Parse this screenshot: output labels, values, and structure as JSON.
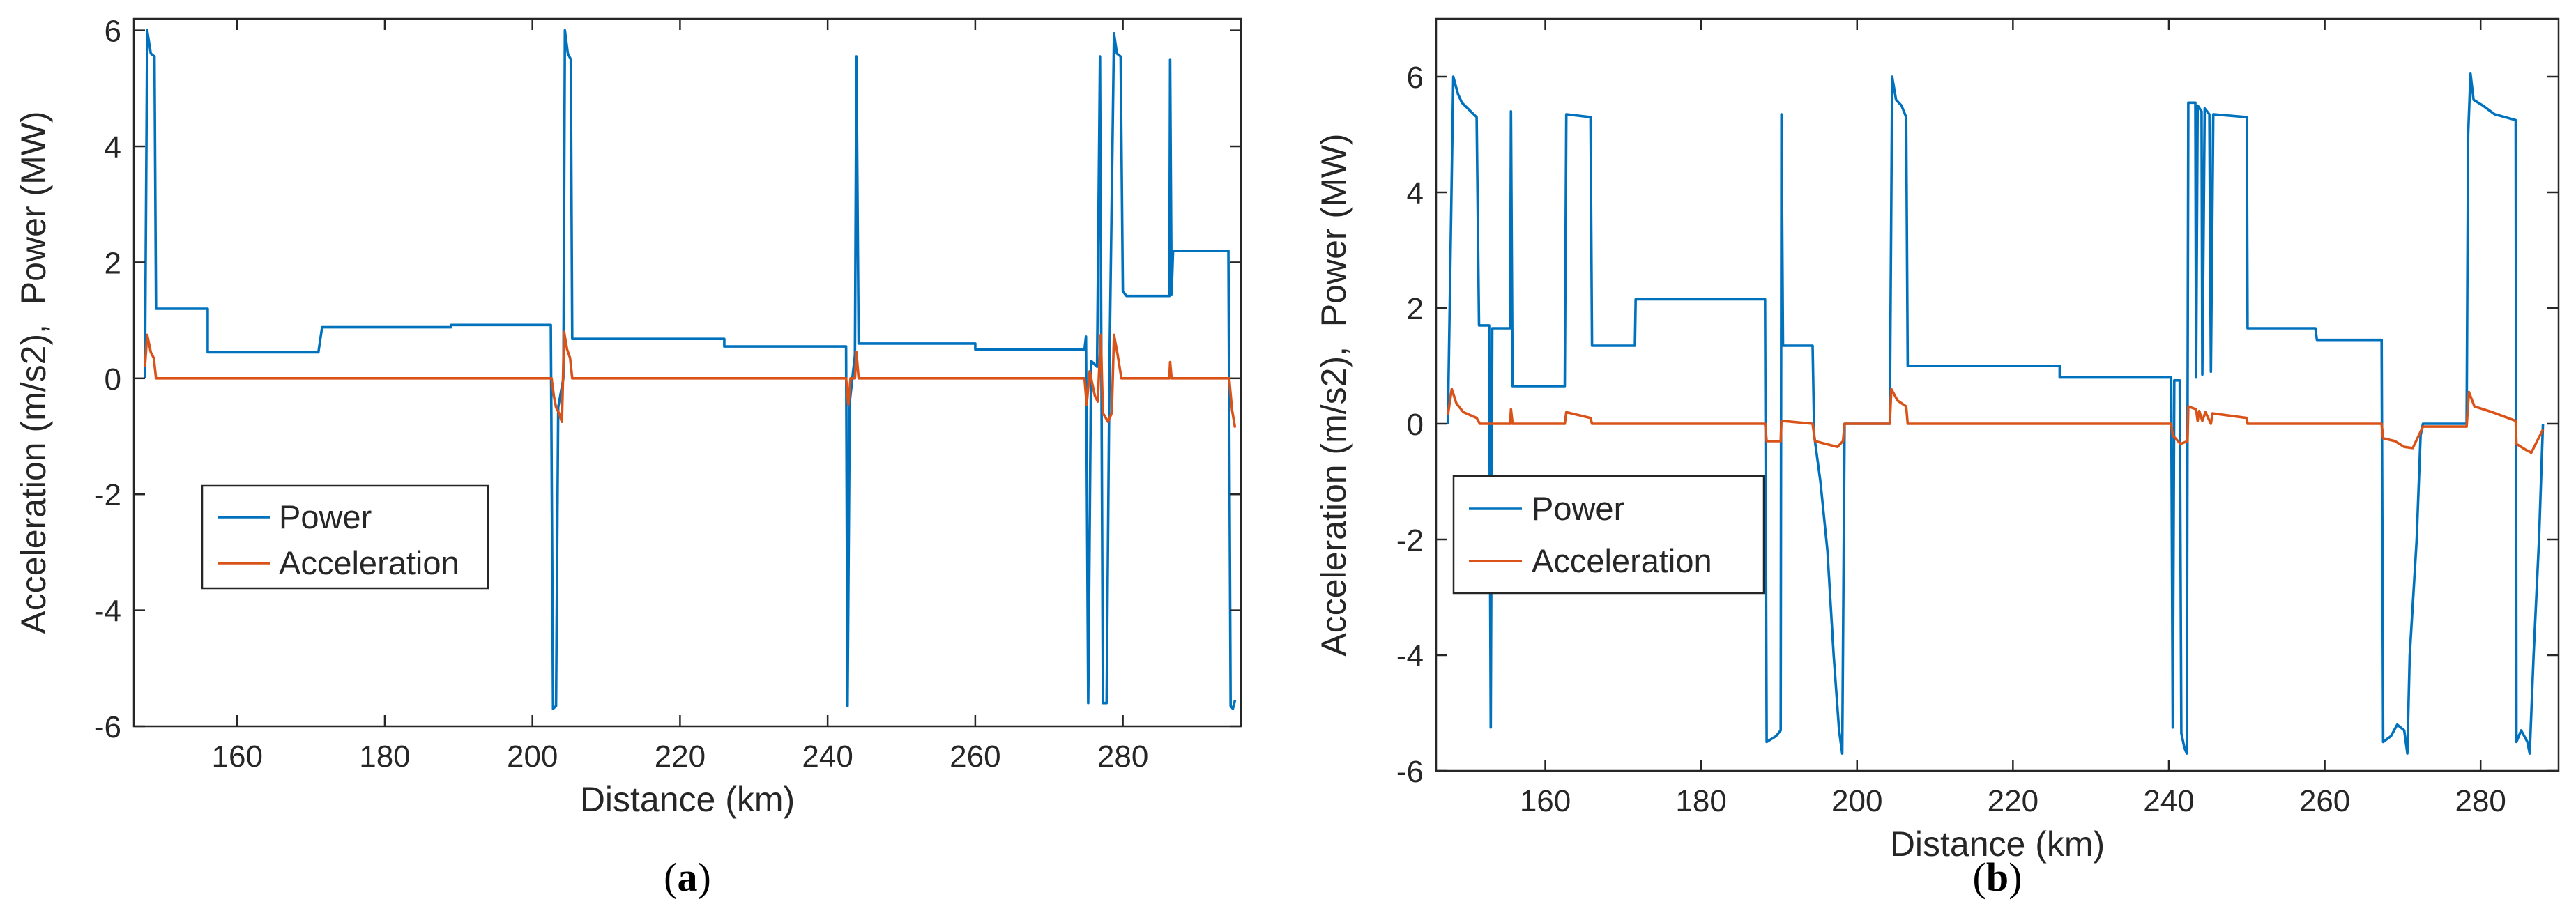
{
  "chart_data": [
    {
      "type": "line",
      "panel_label": {
        "open": "(",
        "letter": "a",
        "close": ")"
      },
      "xlabel": "Distance (km)",
      "ylabel": "Acceleration (m/s2),  Power (MW)",
      "xlim": [
        146,
        296
      ],
      "ylim": [
        -6,
        6.2
      ],
      "xticks": [
        160,
        180,
        200,
        220,
        240,
        260,
        280
      ],
      "yticks": [
        -6,
        -4,
        -2,
        0,
        2,
        4,
        6
      ],
      "legend": {
        "position": "lower-left",
        "entries": [
          "Power",
          "Acceleration"
        ]
      },
      "series": [
        {
          "name": "Power",
          "color": "#0072BD",
          "points": [
            [
              147.5,
              0
            ],
            [
              147.8,
              6.0
            ],
            [
              148.3,
              5.6
            ],
            [
              148.8,
              5.55
            ],
            [
              149.0,
              1.2
            ],
            [
              156,
              1.2
            ],
            [
              156,
              0.45
            ],
            [
              171,
              0.45
            ],
            [
              171.5,
              0.88
            ],
            [
              189,
              0.88
            ],
            [
              189,
              0.92
            ],
            [
              202.5,
              0.92
            ],
            [
              202.8,
              -5.7
            ],
            [
              203.2,
              -5.65
            ],
            [
              203.5,
              -0.5
            ],
            [
              204.2,
              0
            ],
            [
              204.4,
              6.0
            ],
            [
              204.8,
              5.6
            ],
            [
              205.2,
              5.5
            ],
            [
              205.4,
              0.68
            ],
            [
              226,
              0.68
            ],
            [
              226,
              0.55
            ],
            [
              242.5,
              0.55
            ],
            [
              242.7,
              -5.65
            ],
            [
              243.0,
              -0.4
            ],
            [
              243.7,
              0.4
            ],
            [
              243.9,
              5.55
            ],
            [
              244.2,
              0.6
            ],
            [
              260,
              0.6
            ],
            [
              260,
              0.5
            ],
            [
              274.8,
              0.5
            ],
            [
              275.0,
              0.72
            ],
            [
              275.3,
              -5.6
            ],
            [
              275.7,
              0.3
            ],
            [
              276.5,
              0.2
            ],
            [
              276.9,
              5.55
            ],
            [
              277.3,
              -5.6
            ],
            [
              277.8,
              -5.6
            ],
            [
              278.2,
              0.4
            ],
            [
              278.8,
              5.95
            ],
            [
              279.2,
              5.6
            ],
            [
              279.7,
              5.55
            ],
            [
              280.0,
              1.5
            ],
            [
              280.5,
              1.42
            ],
            [
              286.3,
              1.42
            ],
            [
              286.4,
              5.5
            ],
            [
              286.6,
              1.45
            ],
            [
              286.8,
              2.2
            ],
            [
              294.3,
              2.2
            ],
            [
              294.6,
              -5.65
            ],
            [
              294.9,
              -5.7
            ],
            [
              295.2,
              -5.55
            ]
          ]
        },
        {
          "name": "Acceleration",
          "color": "#D95319",
          "points": [
            [
              147.5,
              0.2
            ],
            [
              147.8,
              0.75
            ],
            [
              148.3,
              0.45
            ],
            [
              148.7,
              0.35
            ],
            [
              149.0,
              0
            ],
            [
              202.6,
              0
            ],
            [
              202.9,
              -0.3
            ],
            [
              203.2,
              -0.5
            ],
            [
              203.6,
              -0.6
            ],
            [
              204.0,
              -0.75
            ],
            [
              204.3,
              0.8
            ],
            [
              204.7,
              0.5
            ],
            [
              205.1,
              0.35
            ],
            [
              205.4,
              0
            ],
            [
              242.5,
              0
            ],
            [
              242.8,
              -0.45
            ],
            [
              243.1,
              0
            ],
            [
              243.7,
              0
            ],
            [
              243.9,
              0.45
            ],
            [
              244.2,
              0
            ],
            [
              274.8,
              0
            ],
            [
              275.1,
              -0.45
            ],
            [
              275.5,
              0.12
            ],
            [
              276.2,
              -0.3
            ],
            [
              276.6,
              -0.4
            ],
            [
              277.0,
              0.75
            ],
            [
              277.3,
              -0.6
            ],
            [
              278.0,
              -0.75
            ],
            [
              278.5,
              -0.6
            ],
            [
              278.8,
              0.75
            ],
            [
              279.3,
              0.4
            ],
            [
              279.8,
              0
            ],
            [
              286.3,
              0
            ],
            [
              286.4,
              0.28
            ],
            [
              286.6,
              0
            ],
            [
              294.4,
              0
            ],
            [
              294.8,
              -0.55
            ],
            [
              295.2,
              -0.85
            ]
          ]
        }
      ]
    },
    {
      "type": "line",
      "panel_label": {
        "open": "(",
        "letter": "b",
        "close": ")"
      },
      "xlabel": "Distance (km)",
      "ylabel": "Acceleration (m/s2),  Power (MW)",
      "xlim": [
        146,
        290
      ],
      "ylim": [
        -6,
        7
      ],
      "xticks": [
        160,
        180,
        200,
        220,
        240,
        260,
        280
      ],
      "yticks": [
        -6,
        -4,
        -2,
        0,
        2,
        4,
        6
      ],
      "legend": {
        "position": "lower-left",
        "entries": [
          "Power",
          "Acceleration"
        ]
      },
      "series": [
        {
          "name": "Power",
          "color": "#0072BD",
          "points": [
            [
              147.5,
              0
            ],
            [
              148.2,
              6.0
            ],
            [
              148.8,
              5.7
            ],
            [
              149.3,
              5.55
            ],
            [
              151.2,
              5.3
            ],
            [
              151.5,
              1.7
            ],
            [
              152.8,
              1.7
            ],
            [
              153.0,
              -5.25
            ],
            [
              153.2,
              1.65
            ],
            [
              155.5,
              1.65
            ],
            [
              155.6,
              5.4
            ],
            [
              155.8,
              0.65
            ],
            [
              162.5,
              0.65
            ],
            [
              162.7,
              5.35
            ],
            [
              165.8,
              5.3
            ],
            [
              166.0,
              1.35
            ],
            [
              171.5,
              1.35
            ],
            [
              171.6,
              2.15
            ],
            [
              188.2,
              2.15
            ],
            [
              188.4,
              -5.5
            ],
            [
              189.6,
              -5.4
            ],
            [
              190.2,
              -5.3
            ],
            [
              190.3,
              5.35
            ],
            [
              190.5,
              1.35
            ],
            [
              194.3,
              1.35
            ],
            [
              194.5,
              -0.2
            ],
            [
              195.3,
              -1.0
            ],
            [
              196.2,
              -2.2
            ],
            [
              197.0,
              -4.0
            ],
            [
              197.7,
              -5.3
            ],
            [
              198.1,
              -5.7
            ],
            [
              198.4,
              0
            ],
            [
              204.2,
              0
            ],
            [
              204.5,
              6.0
            ],
            [
              205.0,
              5.6
            ],
            [
              205.7,
              5.5
            ],
            [
              206.3,
              5.3
            ],
            [
              206.5,
              1.0
            ],
            [
              226,
              1.0
            ],
            [
              226,
              0.8
            ],
            [
              240.3,
              0.8
            ],
            [
              240.5,
              -5.25
            ],
            [
              240.7,
              0.75
            ],
            [
              241.4,
              0.75
            ],
            [
              241.6,
              -5.35
            ],
            [
              242.0,
              -5.6
            ],
            [
              242.3,
              -5.7
            ],
            [
              242.5,
              5.55
            ],
            [
              243.4,
              5.55
            ],
            [
              243.5,
              0.8
            ],
            [
              243.7,
              5.5
            ],
            [
              244.2,
              5.4
            ],
            [
              244.3,
              0.85
            ],
            [
              244.6,
              5.45
            ],
            [
              245.2,
              5.35
            ],
            [
              245.4,
              0.9
            ],
            [
              245.7,
              5.35
            ],
            [
              250.0,
              5.3
            ],
            [
              250.1,
              1.65
            ],
            [
              258.8,
              1.65
            ],
            [
              259.0,
              1.45
            ],
            [
              267.3,
              1.45
            ],
            [
              267.5,
              -5.5
            ],
            [
              268.5,
              -5.4
            ],
            [
              269.3,
              -5.2
            ],
            [
              270.2,
              -5.3
            ],
            [
              270.6,
              -5.7
            ],
            [
              270.9,
              -4.0
            ],
            [
              271.8,
              -2.0
            ],
            [
              272.3,
              -0.2
            ],
            [
              272.6,
              0
            ],
            [
              278.2,
              0
            ],
            [
              278.4,
              5.0
            ],
            [
              278.7,
              6.05
            ],
            [
              279.1,
              5.6
            ],
            [
              280.3,
              5.5
            ],
            [
              281.8,
              5.35
            ],
            [
              284.5,
              5.25
            ],
            [
              284.6,
              -5.5
            ],
            [
              285.2,
              -5.3
            ],
            [
              285.6,
              -5.4
            ],
            [
              286.0,
              -5.5
            ],
            [
              286.3,
              -5.7
            ],
            [
              286.8,
              -4.0
            ],
            [
              287.5,
              -2.0
            ],
            [
              288.0,
              0
            ]
          ]
        },
        {
          "name": "Acceleration",
          "color": "#D95319",
          "points": [
            [
              147.5,
              0.15
            ],
            [
              148.0,
              0.6
            ],
            [
              148.6,
              0.35
            ],
            [
              149.5,
              0.2
            ],
            [
              151.2,
              0.1
            ],
            [
              151.6,
              0
            ],
            [
              155.5,
              0
            ],
            [
              155.6,
              0.25
            ],
            [
              155.8,
              0
            ],
            [
              162.5,
              0
            ],
            [
              162.7,
              0.2
            ],
            [
              165.8,
              0.1
            ],
            [
              166.0,
              0
            ],
            [
              188.2,
              0
            ],
            [
              188.4,
              -0.3
            ],
            [
              190.2,
              -0.3
            ],
            [
              190.3,
              0.05
            ],
            [
              194.3,
              0
            ],
            [
              194.6,
              -0.3
            ],
            [
              196.0,
              -0.35
            ],
            [
              197.5,
              -0.4
            ],
            [
              198.2,
              -0.3
            ],
            [
              198.4,
              0
            ],
            [
              204.2,
              0
            ],
            [
              204.4,
              0.6
            ],
            [
              205.2,
              0.4
            ],
            [
              206.3,
              0.3
            ],
            [
              206.5,
              0
            ],
            [
              240.3,
              0
            ],
            [
              240.5,
              -0.2
            ],
            [
              241.5,
              -0.35
            ],
            [
              242.4,
              -0.3
            ],
            [
              242.5,
              0.3
            ],
            [
              243.5,
              0.25
            ],
            [
              243.7,
              0.05
            ],
            [
              243.9,
              0.22
            ],
            [
              244.3,
              0.05
            ],
            [
              244.7,
              0.2
            ],
            [
              245.4,
              0
            ],
            [
              245.6,
              0.18
            ],
            [
              250.0,
              0.1
            ],
            [
              250.1,
              0
            ],
            [
              267.3,
              0
            ],
            [
              267.5,
              -0.25
            ],
            [
              269.0,
              -0.3
            ],
            [
              270.2,
              -0.4
            ],
            [
              271.3,
              -0.42
            ],
            [
              272.6,
              -0.05
            ],
            [
              278.2,
              -0.05
            ],
            [
              278.5,
              0.55
            ],
            [
              279.2,
              0.3
            ],
            [
              281.5,
              0.2
            ],
            [
              284.5,
              0.05
            ],
            [
              284.6,
              -0.35
            ],
            [
              285.8,
              -0.45
            ],
            [
              286.5,
              -0.5
            ],
            [
              288.0,
              -0.1
            ]
          ]
        }
      ]
    }
  ]
}
